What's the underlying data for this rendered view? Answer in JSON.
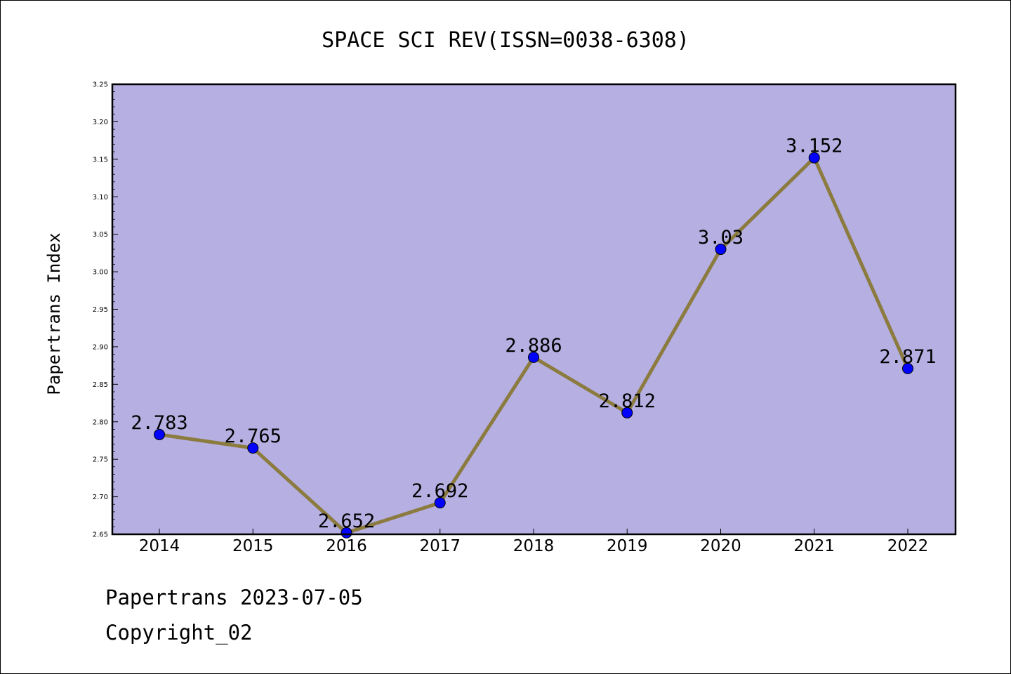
{
  "chart_data": {
    "type": "line",
    "title": "SPACE SCI REV(ISSN=0038-6308)",
    "xlabel": "",
    "ylabel": "Papertrans Index",
    "categories": [
      "2014",
      "2015",
      "2016",
      "2017",
      "2018",
      "2019",
      "2020",
      "2021",
      "2022"
    ],
    "series": [
      {
        "values": [
          2.783,
          2.765,
          2.652,
          2.692,
          2.886,
          2.812,
          3.03,
          3.152,
          2.871
        ],
        "labels": [
          "2.783",
          "2.765",
          "2.652",
          "2.692",
          "2.886",
          "2.812",
          "3.03",
          "3.152",
          "2.871"
        ]
      }
    ],
    "ylim": [
      2.65,
      3.25
    ],
    "yticks": [
      "2.65",
      "2.70",
      "2.75",
      "2.80",
      "2.85",
      "2.90",
      "2.95",
      "3.00",
      "3.05",
      "3.10",
      "3.15",
      "3.20",
      "3.25"
    ],
    "grid": false,
    "legend": "none",
    "colors": {
      "plot_background": "#b5afe2",
      "line": "#8c7b3f",
      "marker": "#0000ff"
    }
  },
  "footer": {
    "line1": "Papertrans 2023-07-05",
    "line2": "Copyright_02"
  }
}
